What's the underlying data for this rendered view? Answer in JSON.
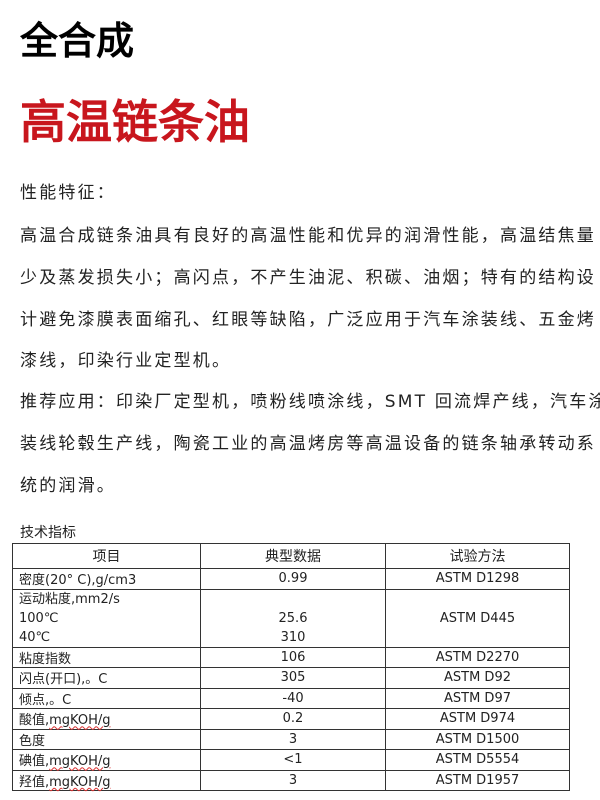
{
  "title": "全合成",
  "subtitle": "高温链条油",
  "features": {
    "heading": "性能特征：",
    "lines": [
      "高温合成链条油具有良好的高温性能和优异的润滑性能，高温结焦量",
      "少及蒸发损失小；高闪点，不产生油泥、积碳、油烟；特有的结构设",
      "计避免漆膜表面缩孔、红眼等缺陷，广泛应用于汽车涂装线、五金烤",
      "漆线，印染行业定型机。"
    ]
  },
  "applications": {
    "lines": [
      "推荐应用：印染厂定型机，喷粉线喷涂线，SMT 回流焊产线，汽车涂",
      "装线轮毂生产线，陶瓷工业的高温烤房等高温设备的链条轴承转动系",
      "统的润滑。"
    ]
  },
  "specs": {
    "label": "技术指标",
    "headers": [
      "项目",
      "典型数据",
      "试验方法"
    ],
    "rows": [
      {
        "item": "密度(20° C),g/cm3",
        "value": "0.99",
        "method": "ASTM D1298"
      },
      {
        "item": "运动粘度,mm2/s",
        "sub": [
          "100℃",
          "40℃"
        ],
        "values": [
          "25.6",
          "310"
        ],
        "method": "ASTM D445"
      },
      {
        "item": "粘度指数",
        "value": "106",
        "method": "ASTM D2270"
      },
      {
        "item": "闪点(开口),。C",
        "value": "305",
        "method": "ASTM D92"
      },
      {
        "item": "倾点,。C",
        "value": "-40",
        "method": "ASTM D97"
      },
      {
        "item_cn": "酸值,",
        "item_unit": "mgKOH/g",
        "value": "0.2",
        "method": "ASTM D974"
      },
      {
        "item": "色度",
        "value": "3",
        "method": "ASTM D1500"
      },
      {
        "item_cn": "碘值,",
        "item_unit": "mgKOH/g",
        "value": "<1",
        "method": "ASTM D5554"
      },
      {
        "item_cn": "羟值,",
        "item_unit": "mgKOH/g",
        "value": "3",
        "method": "ASTM D1957"
      }
    ]
  }
}
